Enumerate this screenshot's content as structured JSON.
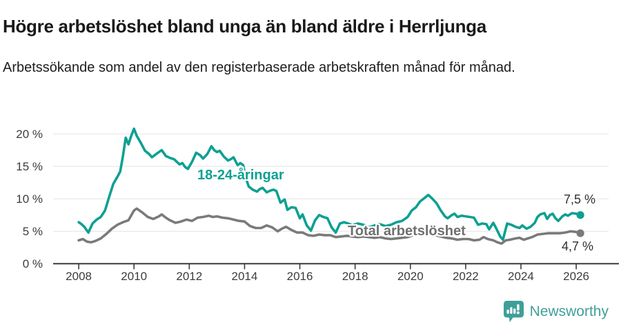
{
  "page": {
    "title": "Högre arbetslöshet bland unga än bland äldre i Herrljunga",
    "subtitle": "Arbetssökande som andel av den registerbaserade arbetskraften månad för månad."
  },
  "chart_data": {
    "type": "line",
    "title": "Högre arbetslöshet bland unga än bland äldre i Herrljunga",
    "subtitle": "Arbetssökande som andel av den registerbaserade arbetskraften månad för månad.",
    "grid": "horizontal",
    "legend_position": "inline-labels",
    "x_axis": {
      "ticks": [
        2008,
        2010,
        2012,
        2014,
        2016,
        2018,
        2020,
        2022,
        2024,
        2026
      ],
      "tick_labels": [
        "2008",
        "2010",
        "2012",
        "2014",
        "2016",
        "2018",
        "2020",
        "2022",
        "2024",
        "2026"
      ],
      "range": [
        2007.07,
        2027.5
      ]
    },
    "y_axis": {
      "ticks": [
        0,
        5,
        10,
        15,
        20
      ],
      "tick_labels": [
        "0 %",
        "5 %",
        "10 %",
        "15 %",
        "20 %"
      ],
      "range": [
        0,
        22
      ],
      "unit": "%"
    },
    "colors": {
      "young": "#0da092",
      "total": "#7a7a7a",
      "grid": "#e3e3e3",
      "axis": "#3a3a3a"
    },
    "series": [
      {
        "name": "18-24-åringar",
        "color": "#0da092",
        "end_value": 7.5,
        "end_label": "7,5 %",
        "points": [
          [
            2008.0,
            6.4
          ],
          [
            2008.1,
            6.1
          ],
          [
            2008.2,
            5.7
          ],
          [
            2008.35,
            4.8
          ],
          [
            2008.5,
            6.2
          ],
          [
            2008.65,
            6.8
          ],
          [
            2008.8,
            7.2
          ],
          [
            2008.95,
            8.2
          ],
          [
            2009.1,
            10.3
          ],
          [
            2009.25,
            12.3
          ],
          [
            2009.4,
            13.4
          ],
          [
            2009.5,
            14.2
          ],
          [
            2009.6,
            16.6
          ],
          [
            2009.7,
            19.4
          ],
          [
            2009.8,
            18.4
          ],
          [
            2009.9,
            19.7
          ],
          [
            2010.0,
            20.8
          ],
          [
            2010.1,
            19.7
          ],
          [
            2010.25,
            18.6
          ],
          [
            2010.4,
            17.4
          ],
          [
            2010.55,
            16.9
          ],
          [
            2010.65,
            16.4
          ],
          [
            2010.8,
            16.9
          ],
          [
            2010.9,
            17.2
          ],
          [
            2011.0,
            17.5
          ],
          [
            2011.15,
            16.6
          ],
          [
            2011.3,
            16.3
          ],
          [
            2011.45,
            16.1
          ],
          [
            2011.55,
            15.7
          ],
          [
            2011.65,
            15.3
          ],
          [
            2011.75,
            15.5
          ],
          [
            2011.85,
            14.9
          ],
          [
            2011.95,
            14.6
          ],
          [
            2012.1,
            15.7
          ],
          [
            2012.25,
            17.1
          ],
          [
            2012.4,
            16.7
          ],
          [
            2012.5,
            16.2
          ],
          [
            2012.65,
            16.9
          ],
          [
            2012.8,
            18.1
          ],
          [
            2012.9,
            17.5
          ],
          [
            2013.0,
            17.2
          ],
          [
            2013.1,
            17.4
          ],
          [
            2013.25,
            16.5
          ],
          [
            2013.4,
            15.9
          ],
          [
            2013.5,
            16.1
          ],
          [
            2013.6,
            16.4
          ],
          [
            2013.75,
            15.2
          ],
          [
            2013.85,
            15.5
          ],
          [
            2013.95,
            15.2
          ],
          [
            2014.05,
            13.2
          ],
          [
            2014.15,
            11.9
          ],
          [
            2014.3,
            11.4
          ],
          [
            2014.45,
            11.1
          ],
          [
            2014.55,
            11.5
          ],
          [
            2014.65,
            11.7
          ],
          [
            2014.8,
            11.0
          ],
          [
            2014.95,
            11.3
          ],
          [
            2015.05,
            11.4
          ],
          [
            2015.15,
            11.2
          ],
          [
            2015.3,
            9.4
          ],
          [
            2015.45,
            9.9
          ],
          [
            2015.55,
            8.3
          ],
          [
            2015.7,
            8.7
          ],
          [
            2015.85,
            8.6
          ],
          [
            2016.0,
            7.0
          ],
          [
            2016.1,
            7.6
          ],
          [
            2016.25,
            5.9
          ],
          [
            2016.4,
            5.1
          ],
          [
            2016.55,
            6.7
          ],
          [
            2016.7,
            7.5
          ],
          [
            2016.85,
            7.2
          ],
          [
            2017.0,
            7.0
          ],
          [
            2017.15,
            5.6
          ],
          [
            2017.3,
            4.8
          ],
          [
            2017.45,
            6.2
          ],
          [
            2017.6,
            6.4
          ],
          [
            2017.75,
            6.2
          ],
          [
            2017.9,
            5.9
          ],
          [
            2018.1,
            6.2
          ],
          [
            2018.3,
            6.0
          ],
          [
            2018.5,
            5.6
          ],
          [
            2018.7,
            5.9
          ],
          [
            2018.9,
            6.1
          ],
          [
            2019.1,
            5.8
          ],
          [
            2019.3,
            6.0
          ],
          [
            2019.5,
            6.4
          ],
          [
            2019.7,
            6.6
          ],
          [
            2019.9,
            7.2
          ],
          [
            2020.05,
            8.2
          ],
          [
            2020.2,
            8.7
          ],
          [
            2020.35,
            9.6
          ],
          [
            2020.5,
            10.1
          ],
          [
            2020.65,
            10.6
          ],
          [
            2020.8,
            10.0
          ],
          [
            2020.95,
            9.3
          ],
          [
            2021.1,
            8.2
          ],
          [
            2021.25,
            7.3
          ],
          [
            2021.35,
            7.0
          ],
          [
            2021.5,
            7.5
          ],
          [
            2021.6,
            7.7
          ],
          [
            2021.7,
            7.2
          ],
          [
            2021.85,
            7.4
          ],
          [
            2022.0,
            7.3
          ],
          [
            2022.15,
            7.2
          ],
          [
            2022.3,
            7.1
          ],
          [
            2022.45,
            6.0
          ],
          [
            2022.6,
            6.2
          ],
          [
            2022.75,
            6.1
          ],
          [
            2022.85,
            5.3
          ],
          [
            2023.0,
            6.3
          ],
          [
            2023.1,
            5.5
          ],
          [
            2023.25,
            4.2
          ],
          [
            2023.35,
            3.7
          ],
          [
            2023.5,
            6.2
          ],
          [
            2023.65,
            6.0
          ],
          [
            2023.8,
            5.7
          ],
          [
            2023.95,
            5.5
          ],
          [
            2024.05,
            5.9
          ],
          [
            2024.2,
            5.4
          ],
          [
            2024.35,
            5.7
          ],
          [
            2024.5,
            6.3
          ],
          [
            2024.6,
            7.2
          ],
          [
            2024.7,
            7.6
          ],
          [
            2024.85,
            7.8
          ],
          [
            2024.95,
            6.9
          ],
          [
            2025.05,
            7.5
          ],
          [
            2025.15,
            7.7
          ],
          [
            2025.25,
            7.0
          ],
          [
            2025.35,
            6.6
          ],
          [
            2025.5,
            7.3
          ],
          [
            2025.6,
            7.6
          ],
          [
            2025.7,
            7.4
          ],
          [
            2025.85,
            7.8
          ],
          [
            2026.0,
            7.7
          ],
          [
            2026.15,
            7.5
          ]
        ]
      },
      {
        "name": "Total arbetslöshet",
        "color": "#7a7a7a",
        "end_value": 4.7,
        "end_label": "4,7 %",
        "points": [
          [
            2008.0,
            3.6
          ],
          [
            2008.15,
            3.8
          ],
          [
            2008.3,
            3.4
          ],
          [
            2008.45,
            3.3
          ],
          [
            2008.6,
            3.5
          ],
          [
            2008.8,
            3.9
          ],
          [
            2009.0,
            4.6
          ],
          [
            2009.2,
            5.4
          ],
          [
            2009.4,
            6.0
          ],
          [
            2009.6,
            6.4
          ],
          [
            2009.8,
            6.7
          ],
          [
            2010.0,
            8.2
          ],
          [
            2010.1,
            8.5
          ],
          [
            2010.3,
            7.9
          ],
          [
            2010.5,
            7.2
          ],
          [
            2010.7,
            6.9
          ],
          [
            2010.9,
            7.3
          ],
          [
            2011.0,
            7.6
          ],
          [
            2011.15,
            7.1
          ],
          [
            2011.3,
            6.7
          ],
          [
            2011.5,
            6.3
          ],
          [
            2011.7,
            6.5
          ],
          [
            2011.9,
            6.8
          ],
          [
            2012.1,
            6.6
          ],
          [
            2012.3,
            7.1
          ],
          [
            2012.5,
            7.2
          ],
          [
            2012.7,
            7.4
          ],
          [
            2012.85,
            7.2
          ],
          [
            2013.0,
            7.3
          ],
          [
            2013.2,
            7.1
          ],
          [
            2013.4,
            7.0
          ],
          [
            2013.6,
            6.8
          ],
          [
            2013.8,
            6.6
          ],
          [
            2014.0,
            6.5
          ],
          [
            2014.2,
            5.8
          ],
          [
            2014.4,
            5.5
          ],
          [
            2014.6,
            5.5
          ],
          [
            2014.8,
            5.9
          ],
          [
            2015.0,
            5.6
          ],
          [
            2015.2,
            5.0
          ],
          [
            2015.35,
            5.4
          ],
          [
            2015.5,
            5.7
          ],
          [
            2015.7,
            5.2
          ],
          [
            2015.9,
            4.8
          ],
          [
            2016.1,
            4.8
          ],
          [
            2016.3,
            4.4
          ],
          [
            2016.5,
            4.3
          ],
          [
            2016.7,
            4.5
          ],
          [
            2016.9,
            4.4
          ],
          [
            2017.1,
            4.4
          ],
          [
            2017.3,
            4.1
          ],
          [
            2017.5,
            4.2
          ],
          [
            2017.7,
            4.3
          ],
          [
            2017.9,
            4.2
          ],
          [
            2018.1,
            4.1
          ],
          [
            2018.3,
            4.2
          ],
          [
            2018.5,
            4.1
          ],
          [
            2018.7,
            4.0
          ],
          [
            2018.9,
            4.1
          ],
          [
            2019.1,
            3.9
          ],
          [
            2019.3,
            3.8
          ],
          [
            2019.5,
            3.9
          ],
          [
            2019.7,
            4.0
          ],
          [
            2019.9,
            4.1
          ],
          [
            2020.1,
            4.4
          ],
          [
            2020.3,
            4.7
          ],
          [
            2020.5,
            4.8
          ],
          [
            2020.7,
            4.6
          ],
          [
            2020.9,
            4.4
          ],
          [
            2021.1,
            4.2
          ],
          [
            2021.3,
            4.0
          ],
          [
            2021.5,
            3.9
          ],
          [
            2021.7,
            3.7
          ],
          [
            2021.9,
            3.8
          ],
          [
            2022.1,
            3.8
          ],
          [
            2022.3,
            3.6
          ],
          [
            2022.5,
            3.7
          ],
          [
            2022.65,
            4.1
          ],
          [
            2022.8,
            3.8
          ],
          [
            2023.0,
            3.6
          ],
          [
            2023.15,
            3.3
          ],
          [
            2023.3,
            3.1
          ],
          [
            2023.45,
            3.6
          ],
          [
            2023.6,
            3.7
          ],
          [
            2023.8,
            3.9
          ],
          [
            2023.95,
            4.0
          ],
          [
            2024.1,
            3.7
          ],
          [
            2024.25,
            3.9
          ],
          [
            2024.4,
            4.1
          ],
          [
            2024.6,
            4.5
          ],
          [
            2024.8,
            4.6
          ],
          [
            2025.0,
            4.7
          ],
          [
            2025.2,
            4.7
          ],
          [
            2025.4,
            4.7
          ],
          [
            2025.6,
            4.8
          ],
          [
            2025.8,
            5.0
          ],
          [
            2026.0,
            4.9
          ],
          [
            2026.15,
            4.7
          ]
        ]
      }
    ]
  },
  "branding": {
    "logo_text": "Newsworthy",
    "logo_color": "#3f9f98",
    "logo_icon": "speech-bubble-bar-chart-icon"
  }
}
